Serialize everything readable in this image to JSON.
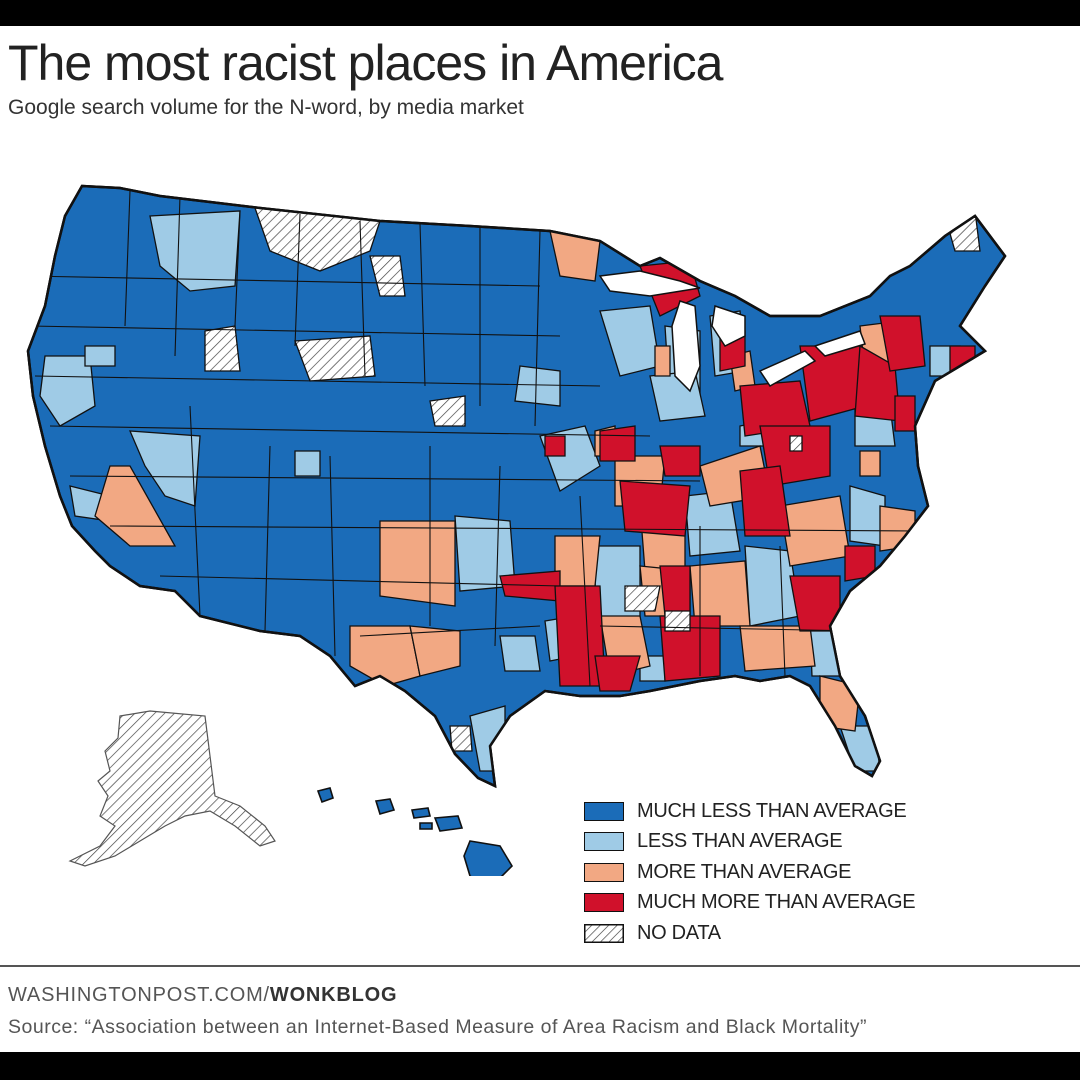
{
  "header": {
    "title": "The most racist places in America",
    "subtitle": "Google search volume for the N-word, by media market"
  },
  "colors": {
    "much_less": "#1b6cb8",
    "less": "#9fcbe6",
    "more": "#f2a883",
    "much_more": "#d0112b",
    "no_data": "hatched",
    "border": "#111111"
  },
  "legend": {
    "items": [
      {
        "label": "MUCH LESS THAN AVERAGE",
        "category": "much_less"
      },
      {
        "label": "LESS THAN AVERAGE",
        "category": "less"
      },
      {
        "label": "MORE THAN AVERAGE",
        "category": "more"
      },
      {
        "label": "MUCH MORE THAN AVERAGE",
        "category": "much_more"
      },
      {
        "label": "NO DATA",
        "category": "no_data"
      }
    ]
  },
  "footer": {
    "site": "WASHINGTONPOST.COM/",
    "blog": "WONKBLOG",
    "source": "Source: “Association between an Internet-Based Measure of Area Racism and Black Mortality”"
  }
}
